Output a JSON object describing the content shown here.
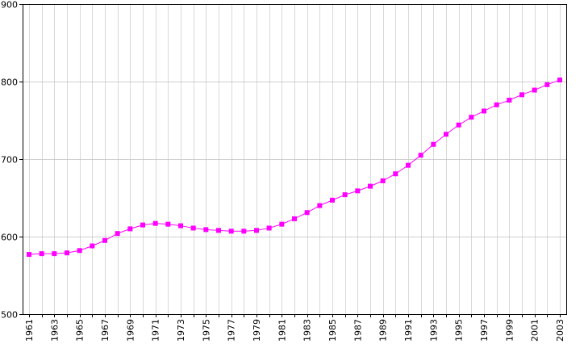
{
  "colors": {
    "series": "#ff00ff",
    "grid": "#c0c0c0",
    "axis": "#000000",
    "background": "#ffffff"
  },
  "chart_data": {
    "type": "line",
    "title": "",
    "xlabel": "",
    "ylabel": "",
    "grid": true,
    "legend": "none",
    "marker": "square",
    "xlim": [
      1961,
      2003
    ],
    "ylim": [
      500,
      900
    ],
    "y_ticks": [
      500,
      600,
      700,
      800,
      900
    ],
    "x_tick_labels": [
      "1961",
      "1963",
      "1965",
      "1967",
      "1969",
      "1971",
      "1973",
      "1975",
      "1977",
      "1979",
      "1981",
      "1983",
      "1985",
      "1987",
      "1989",
      "1991",
      "1993",
      "1995",
      "1997",
      "1999",
      "2001",
      "2003"
    ],
    "x": [
      1961,
      1962,
      1963,
      1964,
      1965,
      1966,
      1967,
      1968,
      1969,
      1970,
      1971,
      1972,
      1973,
      1974,
      1975,
      1976,
      1977,
      1978,
      1979,
      1980,
      1981,
      1982,
      1983,
      1984,
      1985,
      1986,
      1987,
      1988,
      1989,
      1990,
      1991,
      1992,
      1993,
      1994,
      1995,
      1996,
      1997,
      1998,
      1999,
      2000,
      2001,
      2002,
      2003
    ],
    "series": [
      {
        "values": [
          577,
          578,
          578,
          579,
          582,
          588,
          595,
          604,
          610,
          615,
          617,
          616,
          614,
          611,
          609,
          608,
          607,
          607,
          608,
          611,
          616,
          623,
          631,
          640,
          647,
          654,
          659,
          665,
          672,
          681,
          692,
          705,
          719,
          732,
          744,
          754,
          762,
          770,
          776,
          783,
          789,
          796,
          802
        ]
      }
    ]
  }
}
